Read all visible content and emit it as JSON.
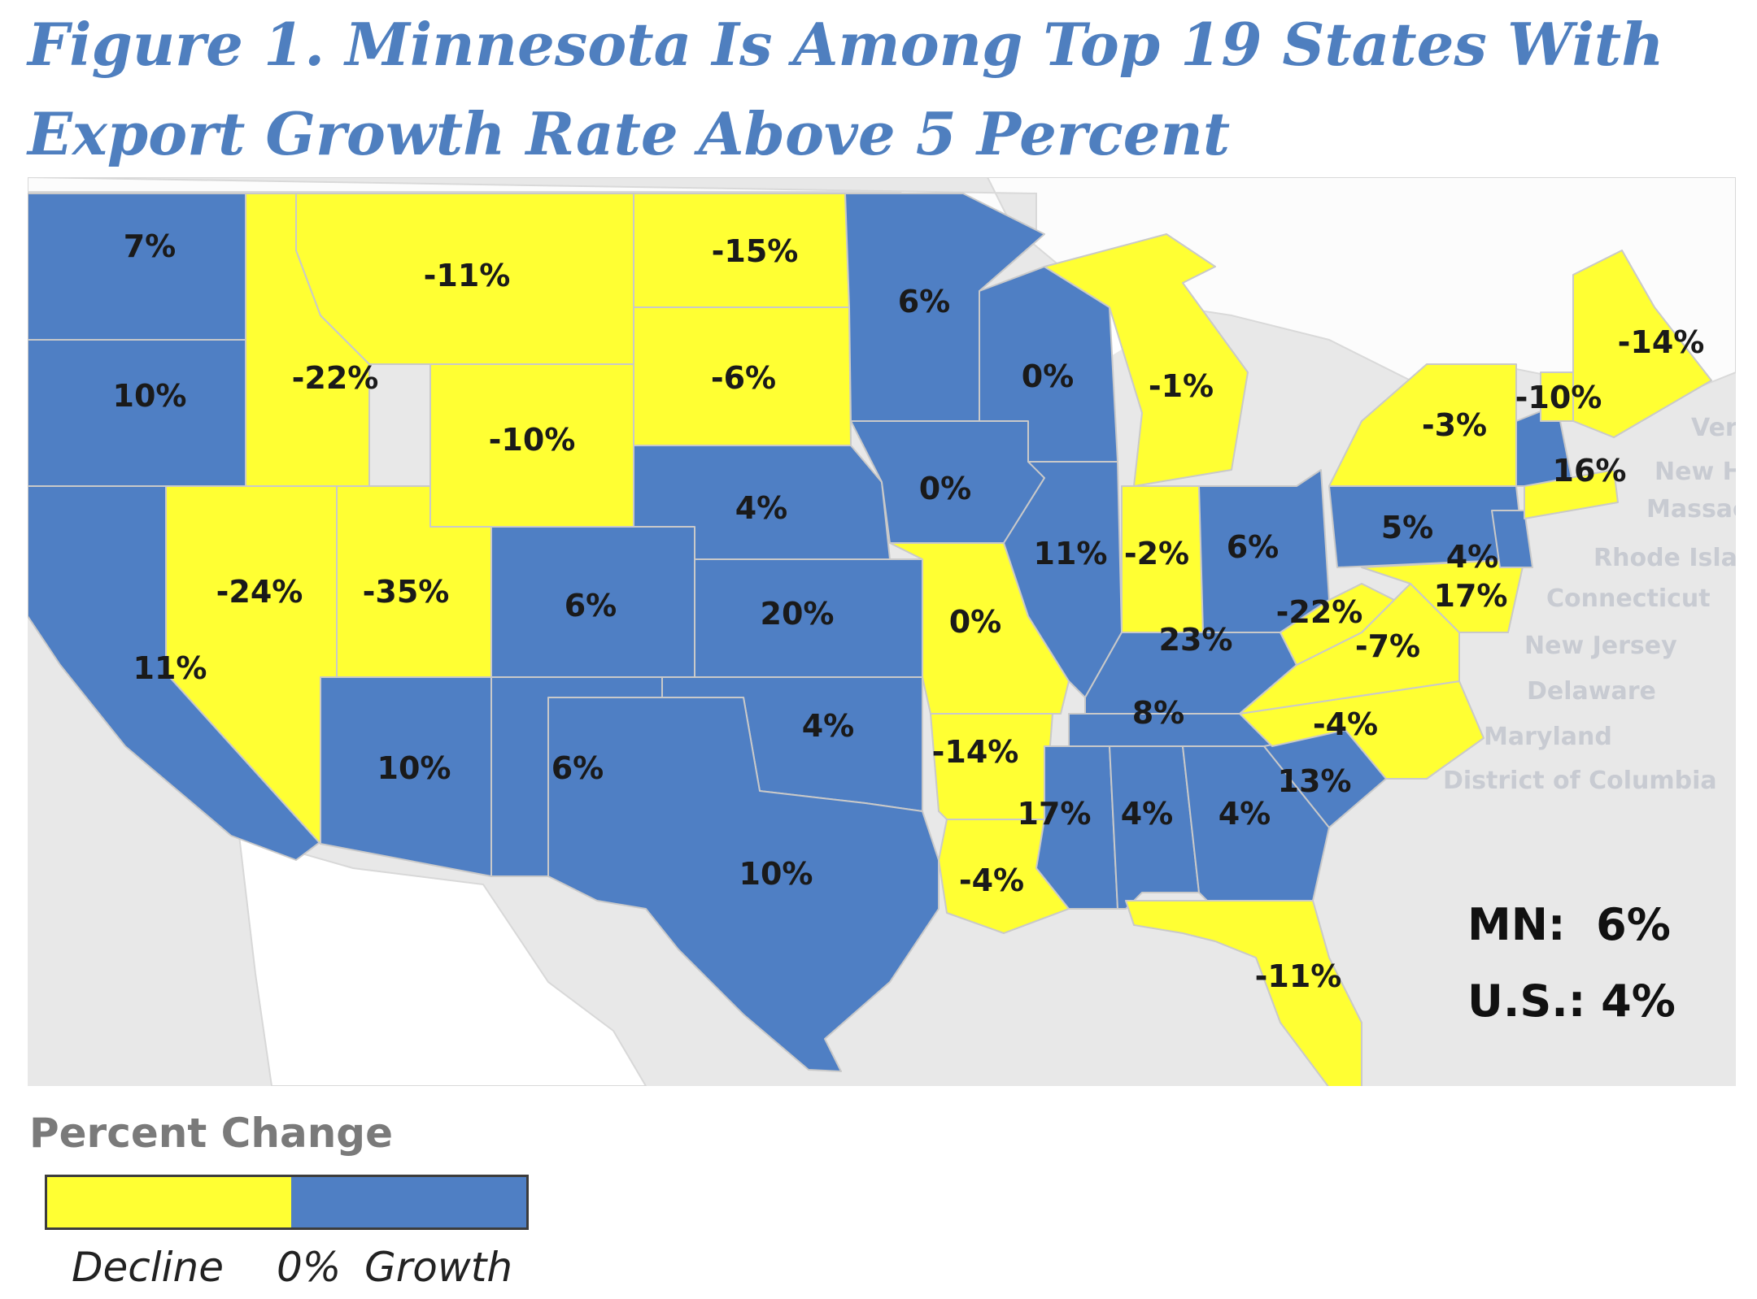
{
  "title_line1": "Figure 1. Minnesota Is Among Top 19 States With",
  "title_line2": "Export Growth Rate Above 5 Percent",
  "colors": {
    "decline": "#ffff33",
    "growth": "#4f7fc4",
    "water": "#e8e8e8",
    "land": "#ffffff",
    "border": "#c9c9c9"
  },
  "state_labels": {
    "wa": "7%",
    "or": "10%",
    "ca": "11%",
    "id": "-22%",
    "mt": "-11%",
    "wy": "-10%",
    "nv": "-24%",
    "ut": "-35%",
    "co": "6%",
    "az": "10%",
    "nm": "6%",
    "nd": "-15%",
    "sd": "-6%",
    "ne": "4%",
    "ks": "20%",
    "ok": "4%",
    "tx": "10%",
    "mn": "6%",
    "ia": "0%",
    "mo": "0%",
    "ar": "-14%",
    "la": "-4%",
    "wi": "0%",
    "il": "11%",
    "mi": "-1%",
    "in": "-2%",
    "oh": "6%",
    "ky": "23%",
    "tn": "8%",
    "ms": "17%",
    "al": "4%",
    "ga": "4%",
    "fl": "-11%",
    "sc": "13%",
    "nc": "-4%",
    "va": "-7%",
    "wv": "-22%",
    "pa": "5%",
    "ny": "-3%",
    "md": "17%",
    "nj": "4%",
    "ct": "16%",
    "vt": "-10%",
    "me": "-14%"
  },
  "map_text": [
    "Verm",
    "New Ham",
    "Massach",
    "Rhode Islan",
    "Connecticut",
    "New Jersey",
    "Delaware",
    "Maryland",
    "District of Columbia"
  ],
  "summary": {
    "mn": "MN:  6%",
    "us": "U.S.: 4%"
  },
  "legend": {
    "title": "Percent Change",
    "decline_label": "Decline",
    "zero_label": "0%",
    "growth_label": "Growth"
  }
}
